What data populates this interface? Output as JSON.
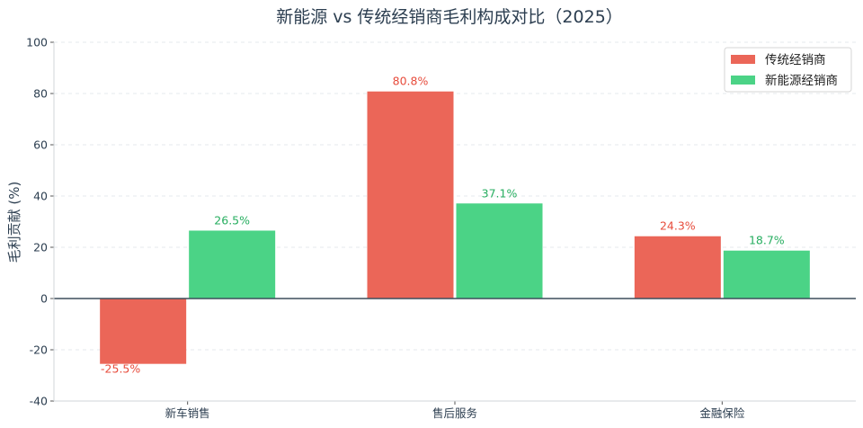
{
  "chart_data": {
    "type": "bar",
    "title": "新能源 vs 传统经销商毛利构成对比（2025）",
    "xlabel": "",
    "ylabel": "毛利贡献 (%)",
    "categories": [
      "新车销售",
      "售后服务",
      "金融保险"
    ],
    "ylim": [
      -40,
      100
    ],
    "yticks": [
      -40,
      -20,
      0,
      20,
      40,
      60,
      80,
      100
    ],
    "grid": true,
    "legend_position": "top-right",
    "series": [
      {
        "name": "传统经销商",
        "values": [
          -25.5,
          80.8,
          24.3
        ],
        "labels": [
          "-25.5%",
          "80.8%",
          "24.3%"
        ],
        "color": "#eb6658"
      },
      {
        "name": "新能源经销商",
        "values": [
          26.5,
          37.1,
          18.7
        ],
        "labels": [
          "26.5%",
          "37.1%",
          "18.7%"
        ],
        "color": "#4bd386"
      }
    ],
    "label_colors": [
      "#e74c3c",
      "#27ae60"
    ]
  }
}
